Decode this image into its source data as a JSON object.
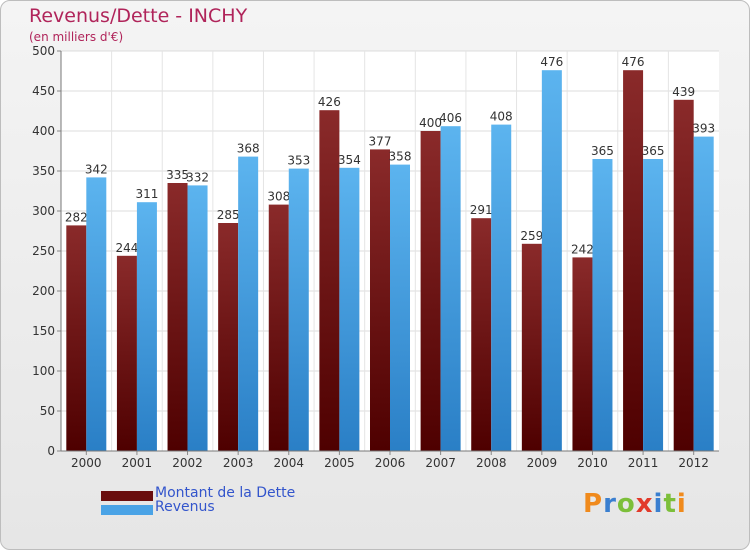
{
  "chart_data": {
    "type": "bar",
    "title": "Revenus/Dette - INCHY",
    "subtitle": "(en milliers d'€)",
    "categories": [
      "2000",
      "2001",
      "2002",
      "2003",
      "2004",
      "2005",
      "2006",
      "2007",
      "2008",
      "2009",
      "2010",
      "2011",
      "2012"
    ],
    "series": [
      {
        "name": "Montant de la Dette",
        "color": "#7a1a1a",
        "values": [
          282,
          244,
          335,
          285,
          308,
          426,
          377,
          400,
          291,
          259,
          242,
          476,
          439
        ]
      },
      {
        "name": "Revenus",
        "color": "#4aa3e6",
        "values": [
          342,
          311,
          332,
          368,
          353,
          354,
          358,
          406,
          408,
          476,
          365,
          365,
          393
        ]
      }
    ],
    "ylim": [
      0,
      500
    ],
    "yticks": [
      0,
      50,
      100,
      150,
      200,
      250,
      300,
      350,
      400,
      450,
      500
    ],
    "grid": true,
    "xlabel": "",
    "ylabel": "",
    "legend": "bottom-left"
  },
  "brand": {
    "letters": [
      "P",
      "r",
      "o",
      "x",
      "i",
      "t",
      "i"
    ],
    "colors": [
      "#f08a1c",
      "#3a7fd0",
      "#7cbf3a",
      "#e23a2a",
      "#3a7fd0",
      "#7cbf3a",
      "#f08a1c"
    ]
  }
}
